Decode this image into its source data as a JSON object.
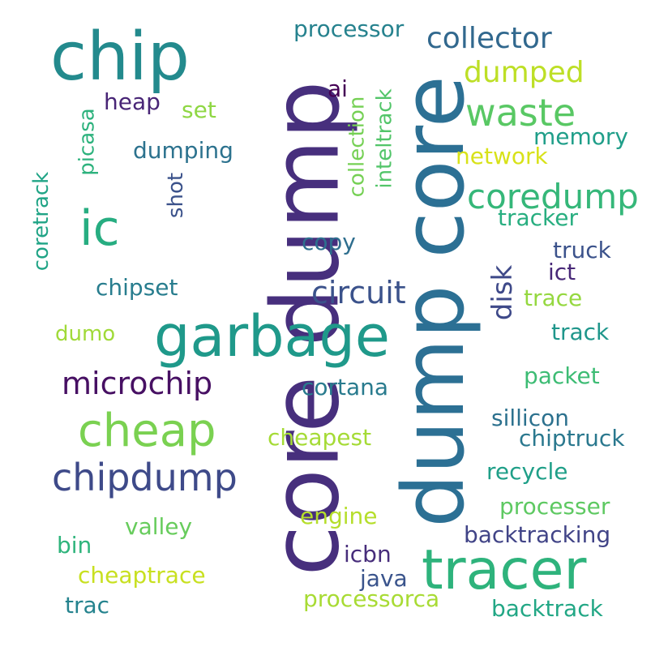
{
  "cloud": {
    "background": "#ffffff",
    "words": [
      {
        "text": "core dump",
        "color": "#472f7d"
      },
      {
        "text": "dump core",
        "color": "#2c7094"
      },
      {
        "text": "chip",
        "color": "#238a8d"
      },
      {
        "text": "garbage",
        "color": "#1f998a"
      },
      {
        "text": "tracer",
        "color": "#2eb37c"
      },
      {
        "text": "waste",
        "color": "#59c864"
      },
      {
        "text": "coredump",
        "color": "#35b779"
      },
      {
        "text": "ic",
        "color": "#27ad81"
      },
      {
        "text": "cheap",
        "color": "#7ad151"
      },
      {
        "text": "chipdump",
        "color": "#3e4a89"
      },
      {
        "text": "microchip",
        "color": "#471063"
      },
      {
        "text": "circuit",
        "color": "#3b528b"
      },
      {
        "text": "collector",
        "color": "#31688e"
      },
      {
        "text": "dumped",
        "color": "#bddf26"
      },
      {
        "text": "processor",
        "color": "#26828e"
      },
      {
        "text": "heap",
        "color": "#482576"
      },
      {
        "text": "set",
        "color": "#8fd744"
      },
      {
        "text": "ai",
        "color": "#440154"
      },
      {
        "text": "picasa",
        "color": "#2db27d"
      },
      {
        "text": "coretrack",
        "color": "#20a486"
      },
      {
        "text": "dumping",
        "color": "#2c728e"
      },
      {
        "text": "shot",
        "color": "#3b528b"
      },
      {
        "text": "collection",
        "color": "#75d054"
      },
      {
        "text": "inteltrack",
        "color": "#52c569"
      },
      {
        "text": "memory",
        "color": "#1f9e89"
      },
      {
        "text": "network",
        "color": "#d8e219"
      },
      {
        "text": "tracker",
        "color": "#28ae80"
      },
      {
        "text": "copy",
        "color": "#2e6e8e"
      },
      {
        "text": "disk",
        "color": "#3e4989"
      },
      {
        "text": "truck",
        "color": "#3b528b"
      },
      {
        "text": "ict",
        "color": "#482878"
      },
      {
        "text": "trace",
        "color": "#95d840"
      },
      {
        "text": "chipset",
        "color": "#287d8e"
      },
      {
        "text": "dumo",
        "color": "#a0da39"
      },
      {
        "text": "track",
        "color": "#1f968b"
      },
      {
        "text": "cortana",
        "color": "#297b8e"
      },
      {
        "text": "packet",
        "color": "#3dbc74"
      },
      {
        "text": "cheapest",
        "color": "#a5db36"
      },
      {
        "text": "sillicon",
        "color": "#2c718e"
      },
      {
        "text": "chiptruck",
        "color": "#2a788e"
      },
      {
        "text": "recycle",
        "color": "#1f9f88"
      },
      {
        "text": "engine",
        "color": "#b5de2b"
      },
      {
        "text": "processer",
        "color": "#5ec962"
      },
      {
        "text": "valley",
        "color": "#67cc5c"
      },
      {
        "text": "backtracking",
        "color": "#414487"
      },
      {
        "text": "bin",
        "color": "#2fb47c"
      },
      {
        "text": "icbn",
        "color": "#472d7b"
      },
      {
        "text": "cheaptrace",
        "color": "#c8e020"
      },
      {
        "text": "java",
        "color": "#3a548c"
      },
      {
        "text": "trac",
        "color": "#25838e"
      },
      {
        "text": "processorca",
        "color": "#a8db34"
      },
      {
        "text": "backtrack",
        "color": "#22a785"
      }
    ]
  }
}
